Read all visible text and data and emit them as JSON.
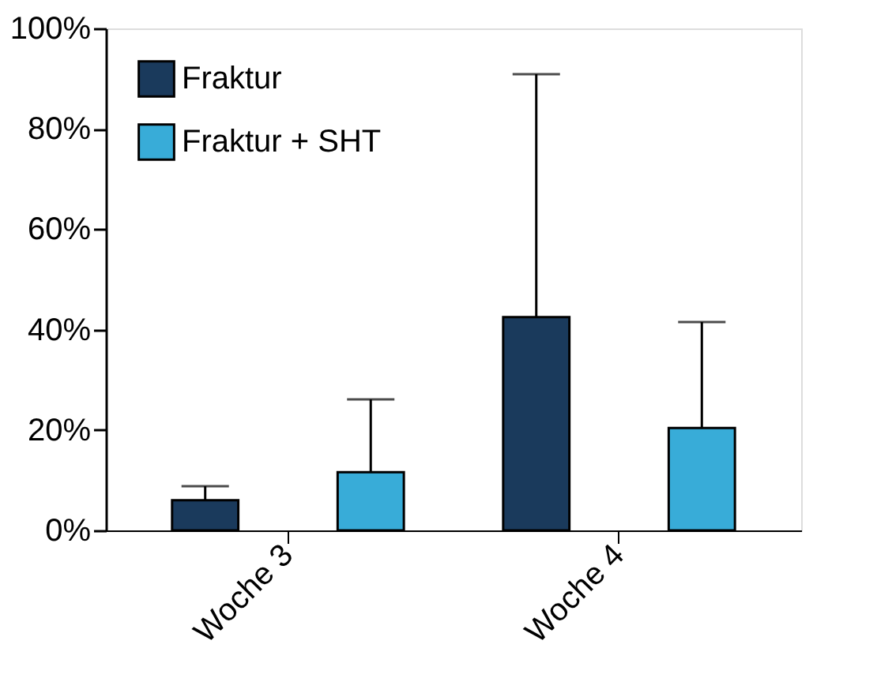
{
  "chart_data": {
    "type": "bar",
    "categories": [
      "Woche 3",
      "Woche 4"
    ],
    "series": [
      {
        "name": "Fraktur",
        "color": "#1a3a5c",
        "values": [
          6,
          42.5
        ],
        "errors": [
          [
            6,
            8.8
          ],
          [
            42.5,
            90.9
          ]
        ]
      },
      {
        "name": "Fraktur + SHT",
        "color": "#38acd8",
        "values": [
          11.6,
          20.4
        ],
        "errors": [
          [
            11.6,
            26.1
          ],
          [
            20.4,
            41.5
          ]
        ]
      }
    ],
    "ylim": [
      0,
      100
    ],
    "yticks": [
      {
        "value": 0,
        "label": "0%"
      },
      {
        "value": 20,
        "label": "20%"
      },
      {
        "value": 40,
        "label": "40%"
      },
      {
        "value": 60,
        "label": "60%"
      },
      {
        "value": 80,
        "label": "80%"
      },
      {
        "value": 100,
        "label": "100%"
      }
    ],
    "grid": false,
    "legend": "top left"
  }
}
